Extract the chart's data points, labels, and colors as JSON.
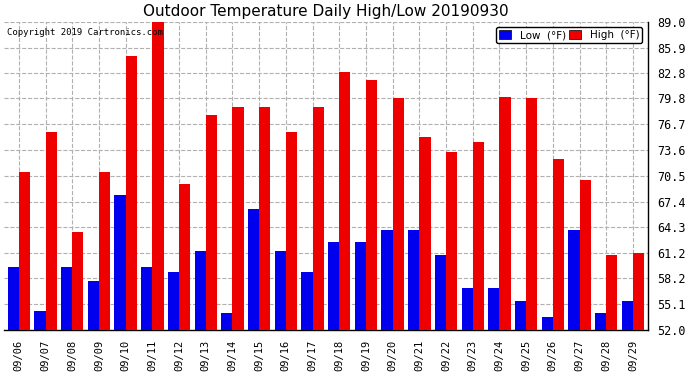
{
  "title": "Outdoor Temperature Daily High/Low 20190930",
  "copyright": "Copyright 2019 Cartronics.com",
  "legend_low": "Low  (°F)",
  "legend_high": "High  (°F)",
  "dates": [
    "09/06",
    "09/07",
    "09/08",
    "09/09",
    "09/10",
    "09/11",
    "09/12",
    "09/13",
    "09/14",
    "09/15",
    "09/16",
    "09/17",
    "09/18",
    "09/19",
    "09/20",
    "09/21",
    "09/22",
    "09/23",
    "09/24",
    "09/25",
    "09/26",
    "09/27",
    "09/28",
    "09/29"
  ],
  "high": [
    71.0,
    75.8,
    63.8,
    71.0,
    84.9,
    89.0,
    69.5,
    77.8,
    78.8,
    78.8,
    75.8,
    78.8,
    83.0,
    82.0,
    79.8,
    75.2,
    73.4,
    74.5,
    80.0,
    79.8,
    72.5,
    70.0,
    61.0,
    61.2
  ],
  "low": [
    59.5,
    54.3,
    59.5,
    57.9,
    68.2,
    59.5,
    59.0,
    61.5,
    54.0,
    66.5,
    61.5,
    59.0,
    62.5,
    62.5,
    64.0,
    64.0,
    61.0,
    57.0,
    57.0,
    55.5,
    53.5,
    64.0,
    54.0,
    55.5
  ],
  "ylim_min": 52.0,
  "ylim_max": 89.0,
  "yticks": [
    52.0,
    55.1,
    58.2,
    61.2,
    64.3,
    67.4,
    70.5,
    73.6,
    76.7,
    79.8,
    82.8,
    85.9,
    89.0
  ],
  "bar_color_low": "#0000ee",
  "bar_color_high": "#ee0000",
  "bg_color": "#ffffff",
  "grid_color": "#b0b0b0",
  "title_fontsize": 11,
  "bar_width": 0.42,
  "figwidth": 6.9,
  "figheight": 3.75,
  "dpi": 100
}
